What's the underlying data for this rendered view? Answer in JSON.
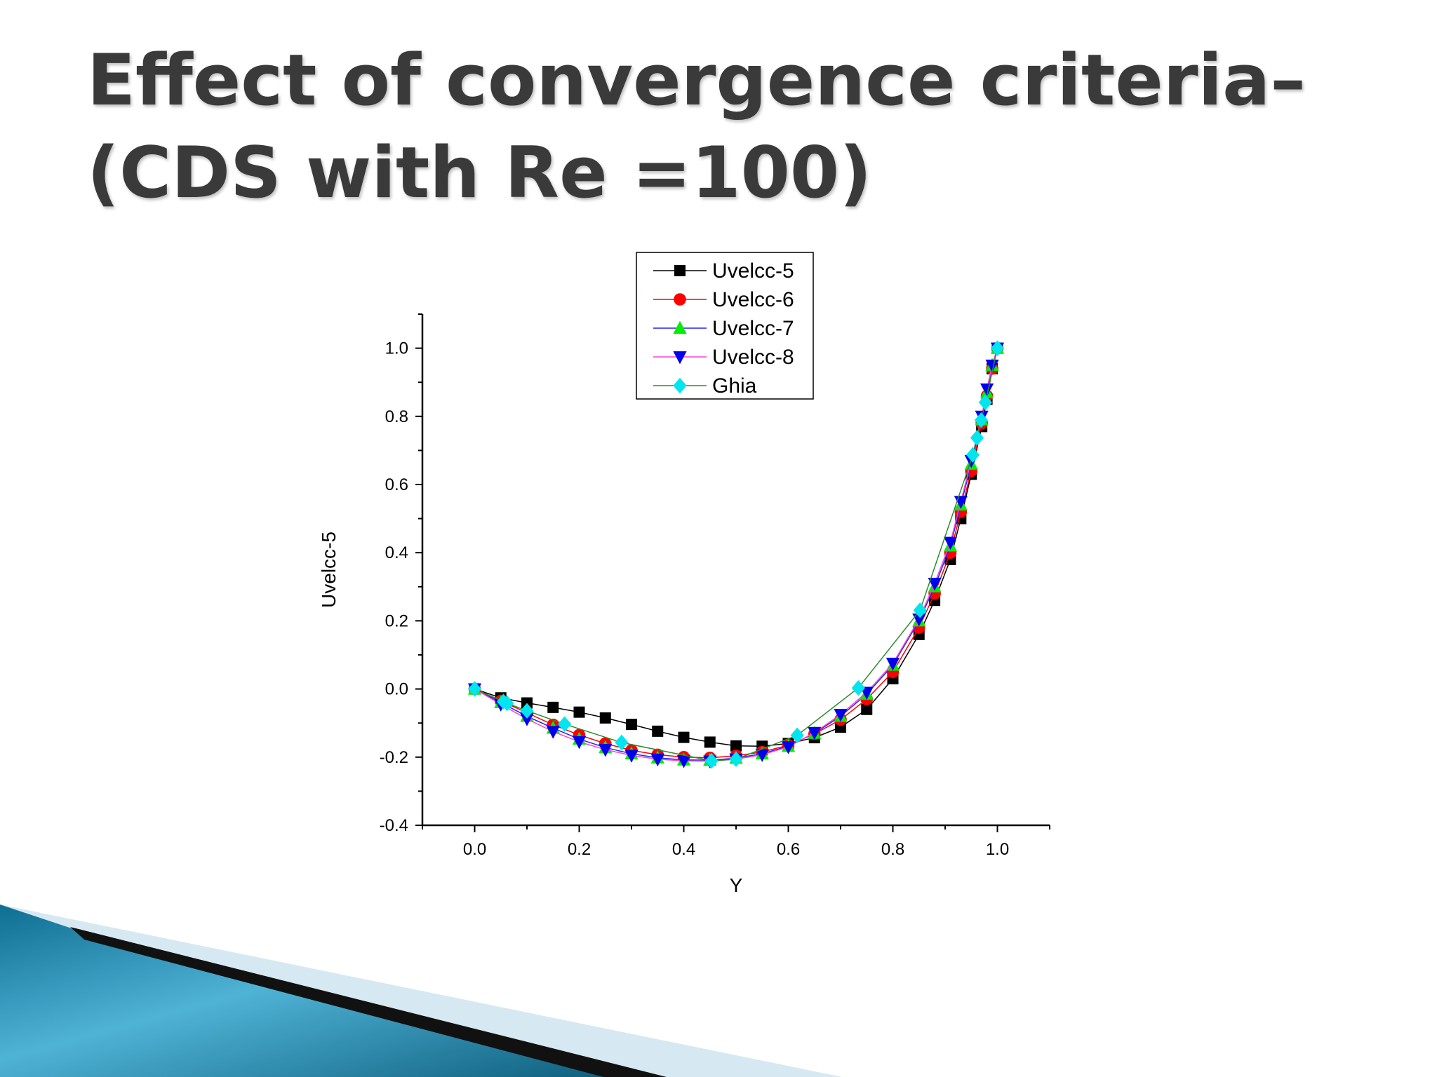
{
  "slide": {
    "title_line1": "Effect of convergence criteria–",
    "title_line2": "(CDS with Re =100)"
  },
  "colors": {
    "decor_teal": "#1b7fa3",
    "decor_black": "#111111",
    "decor_light": "#cfe4ef"
  },
  "chart_data": {
    "type": "scatter",
    "xlabel": "Y",
    "ylabel": "Uvelcc-5",
    "xlim": [
      -0.1,
      1.1
    ],
    "ylim": [
      -0.4,
      1.1
    ],
    "xticks": [
      "0.0",
      "0.2",
      "0.4",
      "0.6",
      "0.8",
      "1.0"
    ],
    "yticks": [
      "-0.4",
      "-0.2",
      "0.0",
      "0.2",
      "0.4",
      "0.6",
      "0.8",
      "1.0"
    ],
    "legend_position": "top-center",
    "series": [
      {
        "name": "Uvelcc-5",
        "marker": "square",
        "color": "#000000",
        "line": "#000000",
        "x": [
          0.0,
          0.05,
          0.1,
          0.15,
          0.2,
          0.25,
          0.3,
          0.35,
          0.4,
          0.45,
          0.5,
          0.55,
          0.6,
          0.65,
          0.7,
          0.75,
          0.8,
          0.85,
          0.88,
          0.91,
          0.93,
          0.95,
          0.97,
          0.98,
          0.99,
          1.0
        ],
        "y": [
          0.0,
          -0.026,
          -0.041,
          -0.054,
          -0.068,
          -0.085,
          -0.104,
          -0.124,
          -0.142,
          -0.156,
          -0.167,
          -0.168,
          -0.16,
          -0.143,
          -0.112,
          -0.06,
          0.03,
          0.16,
          0.26,
          0.38,
          0.5,
          0.63,
          0.77,
          0.85,
          0.94,
          1.0
        ]
      },
      {
        "name": "Uvelcc-6",
        "marker": "circle",
        "color": "#ff0000",
        "line": "#ff0000",
        "x": [
          0.0,
          0.05,
          0.1,
          0.15,
          0.2,
          0.25,
          0.3,
          0.35,
          0.4,
          0.45,
          0.5,
          0.55,
          0.6,
          0.65,
          0.7,
          0.75,
          0.8,
          0.85,
          0.88,
          0.91,
          0.93,
          0.95,
          0.97,
          0.98,
          0.99,
          1.0
        ],
        "y": [
          0.0,
          -0.035,
          -0.07,
          -0.105,
          -0.135,
          -0.16,
          -0.18,
          -0.193,
          -0.2,
          -0.202,
          -0.196,
          -0.185,
          -0.165,
          -0.132,
          -0.09,
          -0.03,
          0.05,
          0.18,
          0.28,
          0.4,
          0.52,
          0.64,
          0.78,
          0.86,
          0.94,
          1.0
        ]
      },
      {
        "name": "Uvelcc-7",
        "marker": "triangle-up",
        "color": "#00ee00",
        "line": "#2222ff",
        "x": [
          0.0,
          0.05,
          0.1,
          0.15,
          0.2,
          0.25,
          0.3,
          0.35,
          0.4,
          0.45,
          0.5,
          0.55,
          0.6,
          0.65,
          0.7,
          0.75,
          0.8,
          0.85,
          0.88,
          0.91,
          0.93,
          0.95,
          0.97,
          0.98,
          0.99,
          1.0
        ],
        "y": [
          0.0,
          -0.04,
          -0.08,
          -0.115,
          -0.147,
          -0.172,
          -0.19,
          -0.202,
          -0.208,
          -0.209,
          -0.203,
          -0.19,
          -0.168,
          -0.13,
          -0.08,
          -0.015,
          0.07,
          0.2,
          0.3,
          0.42,
          0.54,
          0.66,
          0.79,
          0.87,
          0.95,
          1.0
        ]
      },
      {
        "name": "Uvelcc-8",
        "marker": "triangle-down",
        "color": "#0000ee",
        "line": "#ff44cc",
        "x": [
          0.0,
          0.05,
          0.1,
          0.15,
          0.2,
          0.25,
          0.3,
          0.35,
          0.4,
          0.45,
          0.5,
          0.55,
          0.6,
          0.65,
          0.7,
          0.75,
          0.8,
          0.85,
          0.88,
          0.91,
          0.93,
          0.95,
          0.97,
          0.98,
          0.99,
          1.0
        ],
        "y": [
          0.0,
          -0.045,
          -0.088,
          -0.125,
          -0.155,
          -0.178,
          -0.195,
          -0.206,
          -0.211,
          -0.212,
          -0.206,
          -0.193,
          -0.17,
          -0.128,
          -0.075,
          -0.01,
          0.075,
          0.205,
          0.31,
          0.43,
          0.55,
          0.67,
          0.8,
          0.88,
          0.95,
          1.0
        ]
      },
      {
        "name": "Ghia",
        "marker": "diamond",
        "color": "#00e5ee",
        "line": "#2e8b2e",
        "x": [
          0.0,
          0.055,
          0.062,
          0.1,
          0.172,
          0.281,
          0.453,
          0.5,
          0.617,
          0.734,
          0.852,
          0.953,
          0.961,
          0.969,
          0.977,
          1.0
        ],
        "y": [
          0.0,
          -0.037,
          -0.042,
          -0.064,
          -0.103,
          -0.157,
          -0.211,
          -0.206,
          -0.136,
          0.003,
          0.231,
          0.687,
          0.737,
          0.789,
          0.841,
          1.0
        ]
      }
    ]
  }
}
